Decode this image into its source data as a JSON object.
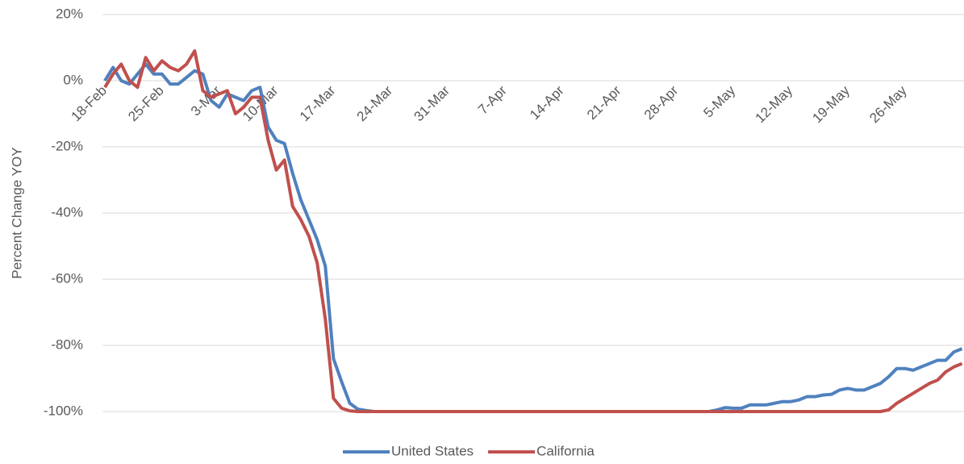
{
  "chart_data": {
    "type": "line",
    "y_label": "Percent Change YOY",
    "categories": [
      "18-Feb",
      null,
      null,
      null,
      null,
      null,
      null,
      "25-Feb",
      null,
      null,
      null,
      null,
      null,
      null,
      "3-Mar",
      null,
      null,
      null,
      null,
      null,
      null,
      "10-Mar",
      null,
      null,
      null,
      null,
      null,
      null,
      "17-Mar",
      null,
      null,
      null,
      null,
      null,
      null,
      "24-Mar",
      null,
      null,
      null,
      null,
      null,
      null,
      "31-Mar",
      null,
      null,
      null,
      null,
      null,
      null,
      "7-Apr",
      null,
      null,
      null,
      null,
      null,
      null,
      "14-Apr",
      null,
      null,
      null,
      null,
      null,
      null,
      "21-Apr",
      null,
      null,
      null,
      null,
      null,
      null,
      "28-Apr",
      null,
      null,
      null,
      null,
      null,
      null,
      "5-May",
      null,
      null,
      null,
      null,
      null,
      null,
      "12-May",
      null,
      null,
      null,
      null,
      null,
      null,
      "19-May",
      null,
      null,
      null,
      null,
      null,
      null,
      "26-May",
      null,
      null,
      null,
      null,
      null,
      null,
      null
    ],
    "series": [
      {
        "name": "United States",
        "color": "#4f81bd",
        "values": [
          0,
          4,
          0,
          -1,
          2,
          5,
          2,
          2,
          -1,
          -1,
          1,
          3,
          2,
          -6,
          -8,
          -4,
          -5,
          -6,
          -3,
          -2,
          -14,
          -18,
          -19,
          -28,
          -36,
          -42,
          -48,
          -56,
          -84,
          -91,
          -97.5,
          -99.3,
          -99.7,
          -100,
          -100,
          -100,
          -100,
          -100,
          -100,
          -100,
          -100,
          -100,
          -100,
          -100,
          -100,
          -100,
          -100,
          -100,
          -100,
          -100,
          -100,
          -100,
          -100,
          -100,
          -100,
          -100,
          -100,
          -100,
          -100,
          -100,
          -100,
          -100,
          -100,
          -100,
          -100,
          -100,
          -100,
          -100,
          -100,
          -100,
          -100,
          -100,
          -100,
          -100,
          -100,
          -99.5,
          -98.8,
          -99,
          -99,
          -98,
          -98,
          -98,
          -97.5,
          -97,
          -97,
          -96.5,
          -95.5,
          -95.5,
          -95,
          -94.8,
          -93.5,
          -93,
          -93.5,
          -93.5,
          -92.5,
          -91.5,
          -89.5,
          -87,
          -87,
          -87.5,
          -86.5,
          -85.5,
          -84.5,
          -84.5,
          -82,
          -81
        ]
      },
      {
        "name": "California",
        "color": "#c0504d",
        "values": [
          -2,
          2,
          5,
          0,
          -2,
          7,
          3,
          6,
          4,
          3,
          5,
          9,
          -3,
          -5,
          -4,
          -3,
          -10,
          -8,
          -5,
          -5,
          -18,
          -27,
          -24,
          -38,
          -42,
          -47,
          -55,
          -72,
          -96,
          -99,
          -99.8,
          -100,
          -100,
          -100,
          -100,
          -100,
          -100,
          -100,
          -100,
          -100,
          -100,
          -100,
          -100,
          -100,
          -100,
          -100,
          -100,
          -100,
          -100,
          -100,
          -100,
          -100,
          -100,
          -100,
          -100,
          -100,
          -100,
          -100,
          -100,
          -100,
          -100,
          -100,
          -100,
          -100,
          -100,
          -100,
          -100,
          -100,
          -100,
          -100,
          -100,
          -100,
          -100,
          -100,
          -100,
          -100,
          -100,
          -100,
          -100,
          -100,
          -100,
          -100,
          -100,
          -100,
          -100,
          -100,
          -100,
          -100,
          -100,
          -100,
          -100,
          -100,
          -100,
          -100,
          -100,
          -100,
          -99.5,
          -97.5,
          -96,
          -94.5,
          -93,
          -91.5,
          -90.5,
          -88,
          -86.5,
          -85.5
        ]
      }
    ],
    "ylim": [
      -100,
      20
    ],
    "yticks": [
      {
        "value": -100,
        "label": "-100%"
      },
      {
        "value": -80,
        "label": "-80%"
      },
      {
        "value": -60,
        "label": "-60%"
      },
      {
        "value": -40,
        "label": "-40%"
      },
      {
        "value": -20,
        "label": "-20%"
      },
      {
        "value": 0,
        "label": "0%"
      },
      {
        "value": 20,
        "label": "20%"
      }
    ],
    "grid": true,
    "legend": "bottom"
  }
}
